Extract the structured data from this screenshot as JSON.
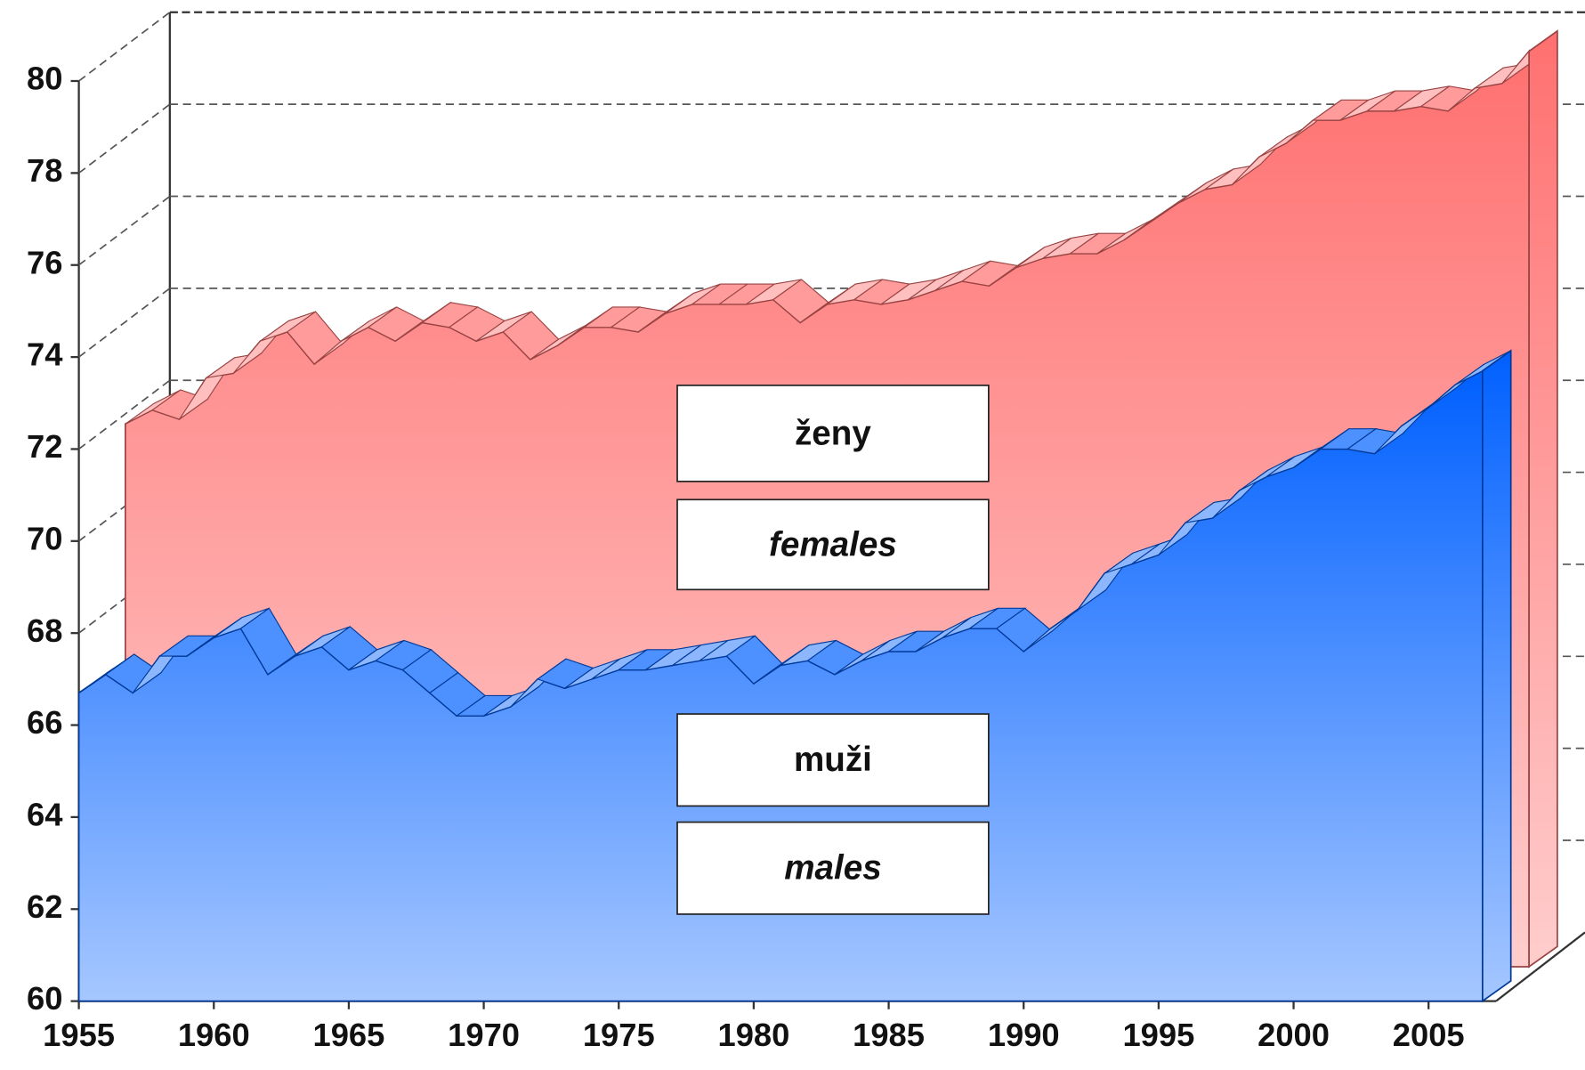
{
  "chart_data": {
    "type": "area3d",
    "x": [
      1955,
      1956,
      1957,
      1958,
      1959,
      1960,
      1961,
      1962,
      1963,
      1964,
      1965,
      1966,
      1967,
      1968,
      1969,
      1970,
      1971,
      1972,
      1973,
      1974,
      1975,
      1976,
      1977,
      1978,
      1979,
      1980,
      1981,
      1982,
      1983,
      1984,
      1985,
      1986,
      1987,
      1988,
      1989,
      1990,
      1991,
      1992,
      1993,
      1994,
      1995,
      1996,
      1997,
      1998,
      1999,
      2000,
      2001,
      2002,
      2003,
      2004,
      2005,
      2006,
      2007
    ],
    "xlim": [
      1955,
      2007.5
    ],
    "xticks": [
      1955,
      1960,
      1965,
      1970,
      1975,
      1980,
      1985,
      1990,
      1995,
      2000,
      2005
    ],
    "ylim": [
      60,
      80
    ],
    "yticks": [
      60,
      62,
      64,
      66,
      68,
      70,
      72,
      74,
      76,
      78,
      80
    ],
    "grid": true,
    "series": [
      {
        "name": "ženy",
        "name_en": "females",
        "color": "#ff7070",
        "values": [
          71.8,
          72.1,
          71.9,
          72.8,
          72.9,
          73.6,
          73.8,
          73.1,
          73.6,
          73.9,
          73.6,
          74.0,
          73.9,
          73.6,
          73.8,
          73.2,
          73.5,
          73.9,
          73.9,
          73.8,
          74.2,
          74.4,
          74.4,
          74.4,
          74.5,
          74.0,
          74.4,
          74.5,
          74.4,
          74.5,
          74.7,
          74.9,
          74.8,
          75.2,
          75.4,
          75.5,
          75.5,
          75.8,
          76.2,
          76.6,
          76.9,
          77.0,
          77.6,
          77.9,
          78.4,
          78.4,
          78.6,
          78.6,
          78.7,
          78.6,
          79.1,
          79.2,
          79.9
        ]
      },
      {
        "name": "muži",
        "name_en": "males",
        "color": "#0060ff",
        "values": [
          66.7,
          67.1,
          66.7,
          67.5,
          67.5,
          67.9,
          68.1,
          67.1,
          67.5,
          67.7,
          67.2,
          67.4,
          67.2,
          66.7,
          66.2,
          66.2,
          66.4,
          67.0,
          66.8,
          67.0,
          67.2,
          67.2,
          67.3,
          67.4,
          67.5,
          66.9,
          67.3,
          67.4,
          67.1,
          67.4,
          67.6,
          67.6,
          67.9,
          68.1,
          68.1,
          67.6,
          68.1,
          68.5,
          69.3,
          69.5,
          69.7,
          70.4,
          70.5,
          71.1,
          71.4,
          71.6,
          72.0,
          72.0,
          71.9,
          72.5,
          72.9,
          73.4,
          73.7
        ]
      }
    ]
  }
}
